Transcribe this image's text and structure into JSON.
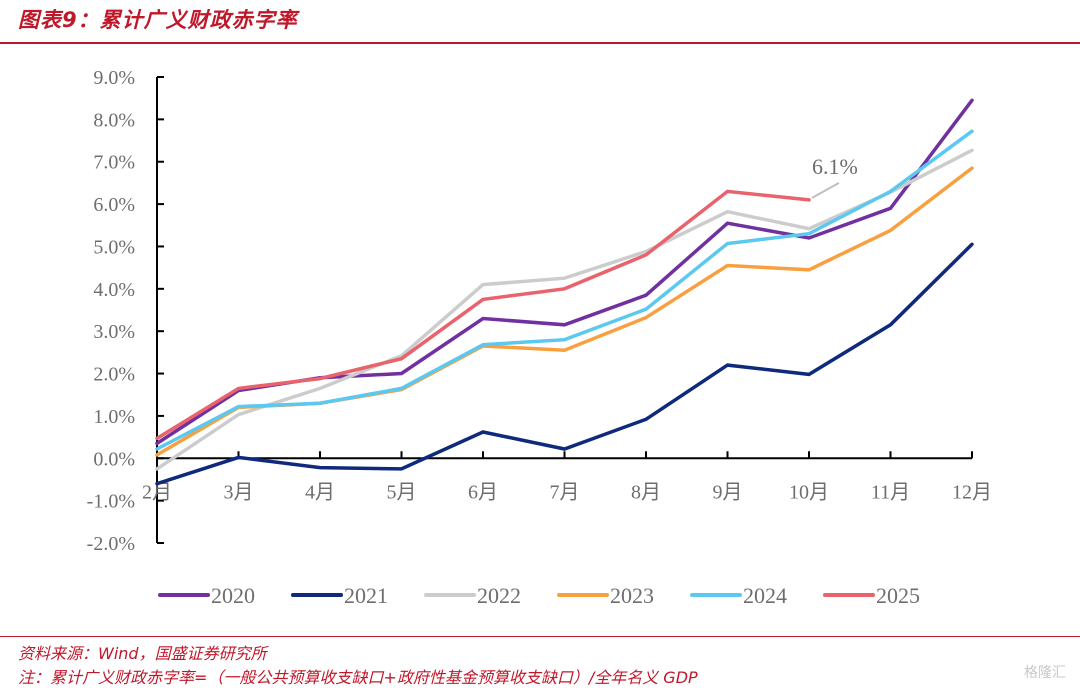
{
  "header": {
    "title": "图表9：累计广义财政赤字率"
  },
  "footer": {
    "source": "资料来源：Wind，国盛证券研究所",
    "note": "注：累计广义财政赤字率=（一般公共预算收支缺口+政府性基金预算收支缺口）/全年名义 GDP",
    "watermark": "格隆汇"
  },
  "chart_data": {
    "type": "line",
    "title": "累计广义财政赤字率",
    "xlabel": "",
    "ylabel": "",
    "categories": [
      "2月",
      "3月",
      "4月",
      "5月",
      "6月",
      "7月",
      "8月",
      "9月",
      "10月",
      "11月",
      "12月"
    ],
    "yticks": [
      "9.0%",
      "8.0%",
      "7.0%",
      "6.0%",
      "5.0%",
      "4.0%",
      "3.0%",
      "2.0%",
      "1.0%",
      "0.0%",
      "-1.0%",
      "-2.0%"
    ],
    "ylim": [
      -2.0,
      9.0
    ],
    "ytick_step": 1.0,
    "grid": false,
    "legend_position": "bottom",
    "series": [
      {
        "name": "2020",
        "color": "#7030a0",
        "values": [
          0.35,
          1.6,
          1.9,
          2.0,
          3.3,
          3.15,
          3.85,
          5.55,
          5.2,
          5.9,
          8.45
        ]
      },
      {
        "name": "2021",
        "color": "#0f2a7c",
        "values": [
          -0.6,
          0.02,
          -0.22,
          -0.25,
          0.62,
          0.22,
          0.92,
          2.2,
          1.98,
          3.15,
          5.05
        ]
      },
      {
        "name": "2022",
        "color": "#cccccc",
        "values": [
          -0.25,
          1.03,
          1.65,
          2.42,
          4.1,
          4.25,
          4.88,
          5.82,
          5.42,
          6.28,
          7.27
        ]
      },
      {
        "name": "2023",
        "color": "#f8a040",
        "values": [
          0.08,
          1.2,
          1.3,
          1.62,
          2.65,
          2.55,
          3.32,
          4.55,
          4.45,
          5.38,
          6.85
        ]
      },
      {
        "name": "2024",
        "color": "#5bc8f0",
        "values": [
          0.22,
          1.22,
          1.3,
          1.65,
          2.68,
          2.8,
          3.52,
          5.07,
          5.3,
          6.3,
          7.72
        ]
      },
      {
        "name": "2025",
        "color": "#e8636c",
        "values": [
          0.47,
          1.65,
          1.88,
          2.35,
          3.75,
          4.0,
          4.8,
          6.3,
          6.1,
          null,
          null
        ]
      }
    ],
    "annotations": [
      {
        "text": "6.1%",
        "series": "2025",
        "category": "10月",
        "value": 6.1
      }
    ]
  }
}
